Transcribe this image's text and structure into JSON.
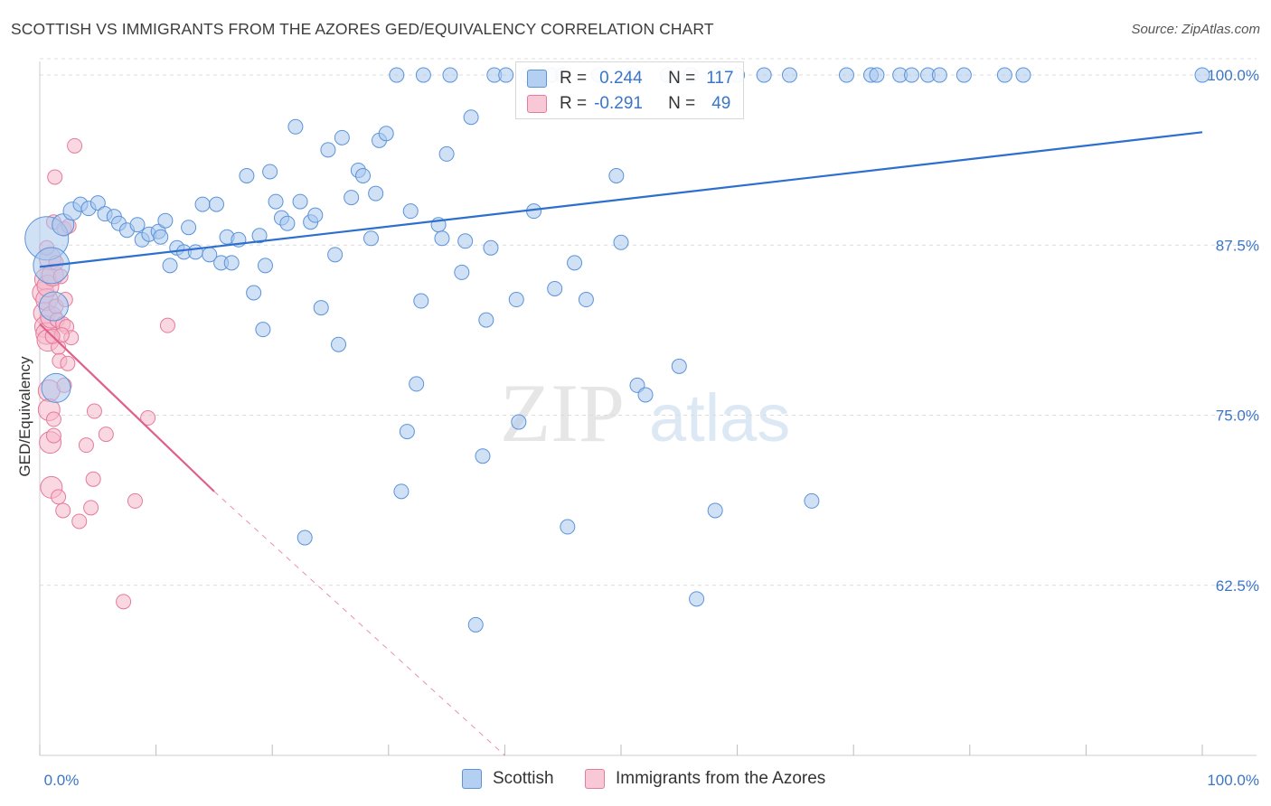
{
  "header": {
    "title": "SCOTTISH VS IMMIGRANTS FROM THE AZORES GED/EQUIVALENCY CORRELATION CHART",
    "source": "Source: ZipAtlas.com"
  },
  "watermark": {
    "zip": "ZIP",
    "atlas": "atlas"
  },
  "legend_top": {
    "rows": [
      {
        "r_label": "R =",
        "r_value": "0.244",
        "n_label": "N =",
        "n_value": "117"
      },
      {
        "r_label": "R =",
        "r_value": "-0.291",
        "n_label": "N =",
        "n_value": "49"
      }
    ]
  },
  "colors": {
    "blue": "#5b93d9",
    "blue_fill": "#a9c8ee",
    "blue_line": "#2c6fce",
    "pink": "#e57a9d",
    "pink_fill": "#f5b8cb",
    "pink_line": "#e0608c",
    "tick_text": "#3a76c8",
    "grid": "#dcdcdc"
  },
  "chart_data": {
    "type": "scatter",
    "title": "SCOTTISH VS IMMIGRANTS FROM THE AZORES GED/EQUIVALENCY CORRELATION CHART",
    "xlabel": "",
    "ylabel": "GED/Equivalency",
    "xlim": [
      0,
      100
    ],
    "ylim": [
      50,
      101
    ],
    "x_tick_labels": [
      "0.0%",
      "100.0%"
    ],
    "y_ticks": [
      62.5,
      75.0,
      87.5,
      100.0
    ],
    "y_tick_labels": [
      "62.5%",
      "75.0%",
      "87.5%",
      "100.0%"
    ],
    "grid": true,
    "legend_position": "bottom",
    "series": [
      {
        "name": "Scottish",
        "color": "#5b93d9",
        "r": 0.244,
        "n": 117,
        "trend": {
          "x": [
            0,
            100
          ],
          "y": [
            85.9,
            95.8
          ],
          "dashed_from": null
        },
        "points": [
          [
            0.6,
            88.0,
            5
          ],
          [
            1.0,
            86.0,
            4
          ],
          [
            1.2,
            83.0,
            3
          ],
          [
            1.4,
            77.0,
            3
          ],
          [
            2.0,
            89.0,
            2
          ],
          [
            2.8,
            90.0,
            1.5
          ],
          [
            3.5,
            90.5,
            1
          ],
          [
            4.2,
            90.2,
            1
          ],
          [
            5.0,
            90.6,
            1
          ],
          [
            5.6,
            89.8,
            1
          ],
          [
            6.4,
            89.6,
            1
          ],
          [
            6.8,
            89.1,
            1
          ],
          [
            7.5,
            88.6,
            1
          ],
          [
            8.4,
            89.0,
            1
          ],
          [
            8.8,
            87.9,
            1
          ],
          [
            9.4,
            88.3,
            1
          ],
          [
            10.2,
            88.5,
            1
          ],
          [
            10.4,
            88.1,
            1
          ],
          [
            10.8,
            89.3,
            1
          ],
          [
            11.2,
            86.0,
            1
          ],
          [
            11.8,
            87.3,
            1
          ],
          [
            12.4,
            87.0,
            1
          ],
          [
            12.8,
            88.8,
            1
          ],
          [
            13.4,
            87.0,
            1
          ],
          [
            14.0,
            90.5,
            1
          ],
          [
            14.6,
            86.8,
            1
          ],
          [
            15.2,
            90.5,
            1
          ],
          [
            15.6,
            86.2,
            1
          ],
          [
            16.1,
            88.1,
            1
          ],
          [
            16.5,
            86.2,
            1
          ],
          [
            17.1,
            87.9,
            1
          ],
          [
            17.8,
            92.6,
            1
          ],
          [
            18.4,
            84.0,
            1
          ],
          [
            18.9,
            88.2,
            1
          ],
          [
            19.2,
            81.3,
            1
          ],
          [
            19.4,
            86.0,
            1
          ],
          [
            19.8,
            92.9,
            1
          ],
          [
            20.3,
            90.7,
            1
          ],
          [
            20.8,
            89.5,
            1
          ],
          [
            21.3,
            89.1,
            1
          ],
          [
            22.0,
            96.2,
            1
          ],
          [
            22.4,
            90.7,
            1
          ],
          [
            22.8,
            66.0,
            1
          ],
          [
            23.3,
            89.2,
            1
          ],
          [
            23.7,
            89.7,
            1
          ],
          [
            24.2,
            82.9,
            1
          ],
          [
            24.8,
            94.5,
            1
          ],
          [
            25.4,
            86.8,
            1
          ],
          [
            25.7,
            80.2,
            1
          ],
          [
            26.0,
            95.4,
            1
          ],
          [
            26.8,
            91.0,
            1
          ],
          [
            27.4,
            93.0,
            1
          ],
          [
            27.8,
            92.6,
            1
          ],
          [
            28.5,
            88.0,
            1
          ],
          [
            28.9,
            91.3,
            1
          ],
          [
            29.2,
            95.2,
            1
          ],
          [
            29.8,
            95.7,
            1
          ],
          [
            30.7,
            100.0,
            1
          ],
          [
            31.1,
            69.4,
            1
          ],
          [
            31.6,
            73.8,
            1
          ],
          [
            31.9,
            90.0,
            1
          ],
          [
            32.4,
            77.3,
            1
          ],
          [
            32.8,
            83.4,
            1
          ],
          [
            33.0,
            100.0,
            1
          ],
          [
            34.3,
            89.0,
            1
          ],
          [
            34.6,
            88.0,
            1
          ],
          [
            35.0,
            94.2,
            1
          ],
          [
            35.3,
            100.0,
            1
          ],
          [
            36.3,
            85.5,
            1
          ],
          [
            36.6,
            87.8,
            1
          ],
          [
            37.1,
            96.9,
            1
          ],
          [
            37.5,
            59.6,
            1
          ],
          [
            38.1,
            72.0,
            1
          ],
          [
            38.4,
            82.0,
            1
          ],
          [
            38.8,
            87.3,
            1
          ],
          [
            39.1,
            100.0,
            1
          ],
          [
            40.1,
            100.0,
            1
          ],
          [
            41.0,
            83.5,
            1
          ],
          [
            41.2,
            74.5,
            1
          ],
          [
            42.0,
            100.0,
            1
          ],
          [
            42.5,
            90.0,
            1
          ],
          [
            44.0,
            100.0,
            1
          ],
          [
            44.3,
            84.3,
            1
          ],
          [
            45.0,
            100.0,
            1
          ],
          [
            45.4,
            66.8,
            1
          ],
          [
            46.0,
            86.2,
            1
          ],
          [
            47.0,
            83.5,
            1
          ],
          [
            48.1,
            100.0,
            1
          ],
          [
            49.6,
            92.6,
            1
          ],
          [
            50.0,
            87.7,
            1
          ],
          [
            51.0,
            100.0,
            1
          ],
          [
            51.4,
            77.2,
            1
          ],
          [
            52.1,
            76.5,
            1
          ],
          [
            54.0,
            100.0,
            1
          ],
          [
            55.0,
            78.6,
            1
          ],
          [
            56.0,
            100.0,
            1
          ],
          [
            56.5,
            61.5,
            1
          ],
          [
            58.1,
            68.0,
            1
          ],
          [
            58.5,
            100.0,
            1
          ],
          [
            60.0,
            100.0,
            1
          ],
          [
            62.3,
            100.0,
            1
          ],
          [
            64.5,
            100.0,
            1
          ],
          [
            66.4,
            68.7,
            1
          ],
          [
            69.4,
            100.0,
            1
          ],
          [
            71.5,
            100.0,
            1
          ],
          [
            72.0,
            100.0,
            1
          ],
          [
            74.0,
            100.0,
            1
          ],
          [
            75.0,
            100.0,
            1
          ],
          [
            76.4,
            100.0,
            1
          ],
          [
            77.4,
            100.0,
            1
          ],
          [
            79.5,
            100.0,
            1
          ],
          [
            83.0,
            100.0,
            1
          ],
          [
            84.6,
            100.0,
            1
          ],
          [
            100.0,
            100.0,
            1
          ]
        ]
      },
      {
        "name": "Immigrants from the Azores",
        "color": "#e57a9d",
        "r": -0.291,
        "n": 49,
        "trend": {
          "x": [
            0,
            15
          ],
          "y": [
            81.7,
            69.4
          ],
          "dashed_to": {
            "x": 40,
            "y": 50
          }
        },
        "points": [
          [
            0.3,
            84.0,
            2
          ],
          [
            0.4,
            82.5,
            2
          ],
          [
            0.5,
            81.5,
            2
          ],
          [
            0.5,
            85.0,
            2
          ],
          [
            0.6,
            83.5,
            2
          ],
          [
            0.6,
            81.0,
            2
          ],
          [
            0.7,
            84.5,
            2
          ],
          [
            0.7,
            80.5,
            2
          ],
          [
            0.8,
            76.8,
            2
          ],
          [
            0.8,
            75.4,
            2
          ],
          [
            0.9,
            86.5,
            2
          ],
          [
            0.9,
            73.0,
            2
          ],
          [
            1.0,
            69.7,
            2
          ],
          [
            1.0,
            82.2,
            2
          ],
          [
            1.1,
            85.3,
            2
          ],
          [
            1.2,
            89.2,
            1
          ],
          [
            1.2,
            74.7,
            1
          ],
          [
            1.2,
            73.5,
            1
          ],
          [
            1.3,
            92.5,
            1
          ],
          [
            1.4,
            83.0,
            1
          ],
          [
            1.4,
            86.2,
            1
          ],
          [
            1.5,
            82.0,
            1
          ],
          [
            1.6,
            80.0,
            1
          ],
          [
            1.6,
            69.0,
            1
          ],
          [
            1.7,
            79.0,
            1
          ],
          [
            1.8,
            85.2,
            1
          ],
          [
            2.0,
            81.7,
            1
          ],
          [
            2.0,
            68.0,
            1
          ],
          [
            2.1,
            88.7,
            1
          ],
          [
            2.1,
            77.2,
            1
          ],
          [
            2.2,
            83.5,
            1
          ],
          [
            2.3,
            81.5,
            1
          ],
          [
            2.4,
            78.8,
            1
          ],
          [
            2.7,
            80.7,
            1
          ],
          [
            3.0,
            94.8,
            1
          ],
          [
            3.4,
            67.2,
            1
          ],
          [
            4.0,
            72.8,
            1
          ],
          [
            4.4,
            68.2,
            1
          ],
          [
            4.6,
            70.3,
            1
          ],
          [
            4.7,
            75.3,
            1
          ],
          [
            5.7,
            73.6,
            1
          ],
          [
            7.2,
            61.3,
            1
          ],
          [
            8.2,
            68.7,
            1
          ],
          [
            9.3,
            74.8,
            1
          ],
          [
            11.0,
            81.6,
            1
          ],
          [
            2.5,
            88.9,
            1
          ],
          [
            1.9,
            80.9,
            1
          ],
          [
            0.6,
            87.3,
            1
          ],
          [
            1.1,
            80.8,
            1
          ]
        ]
      }
    ]
  }
}
